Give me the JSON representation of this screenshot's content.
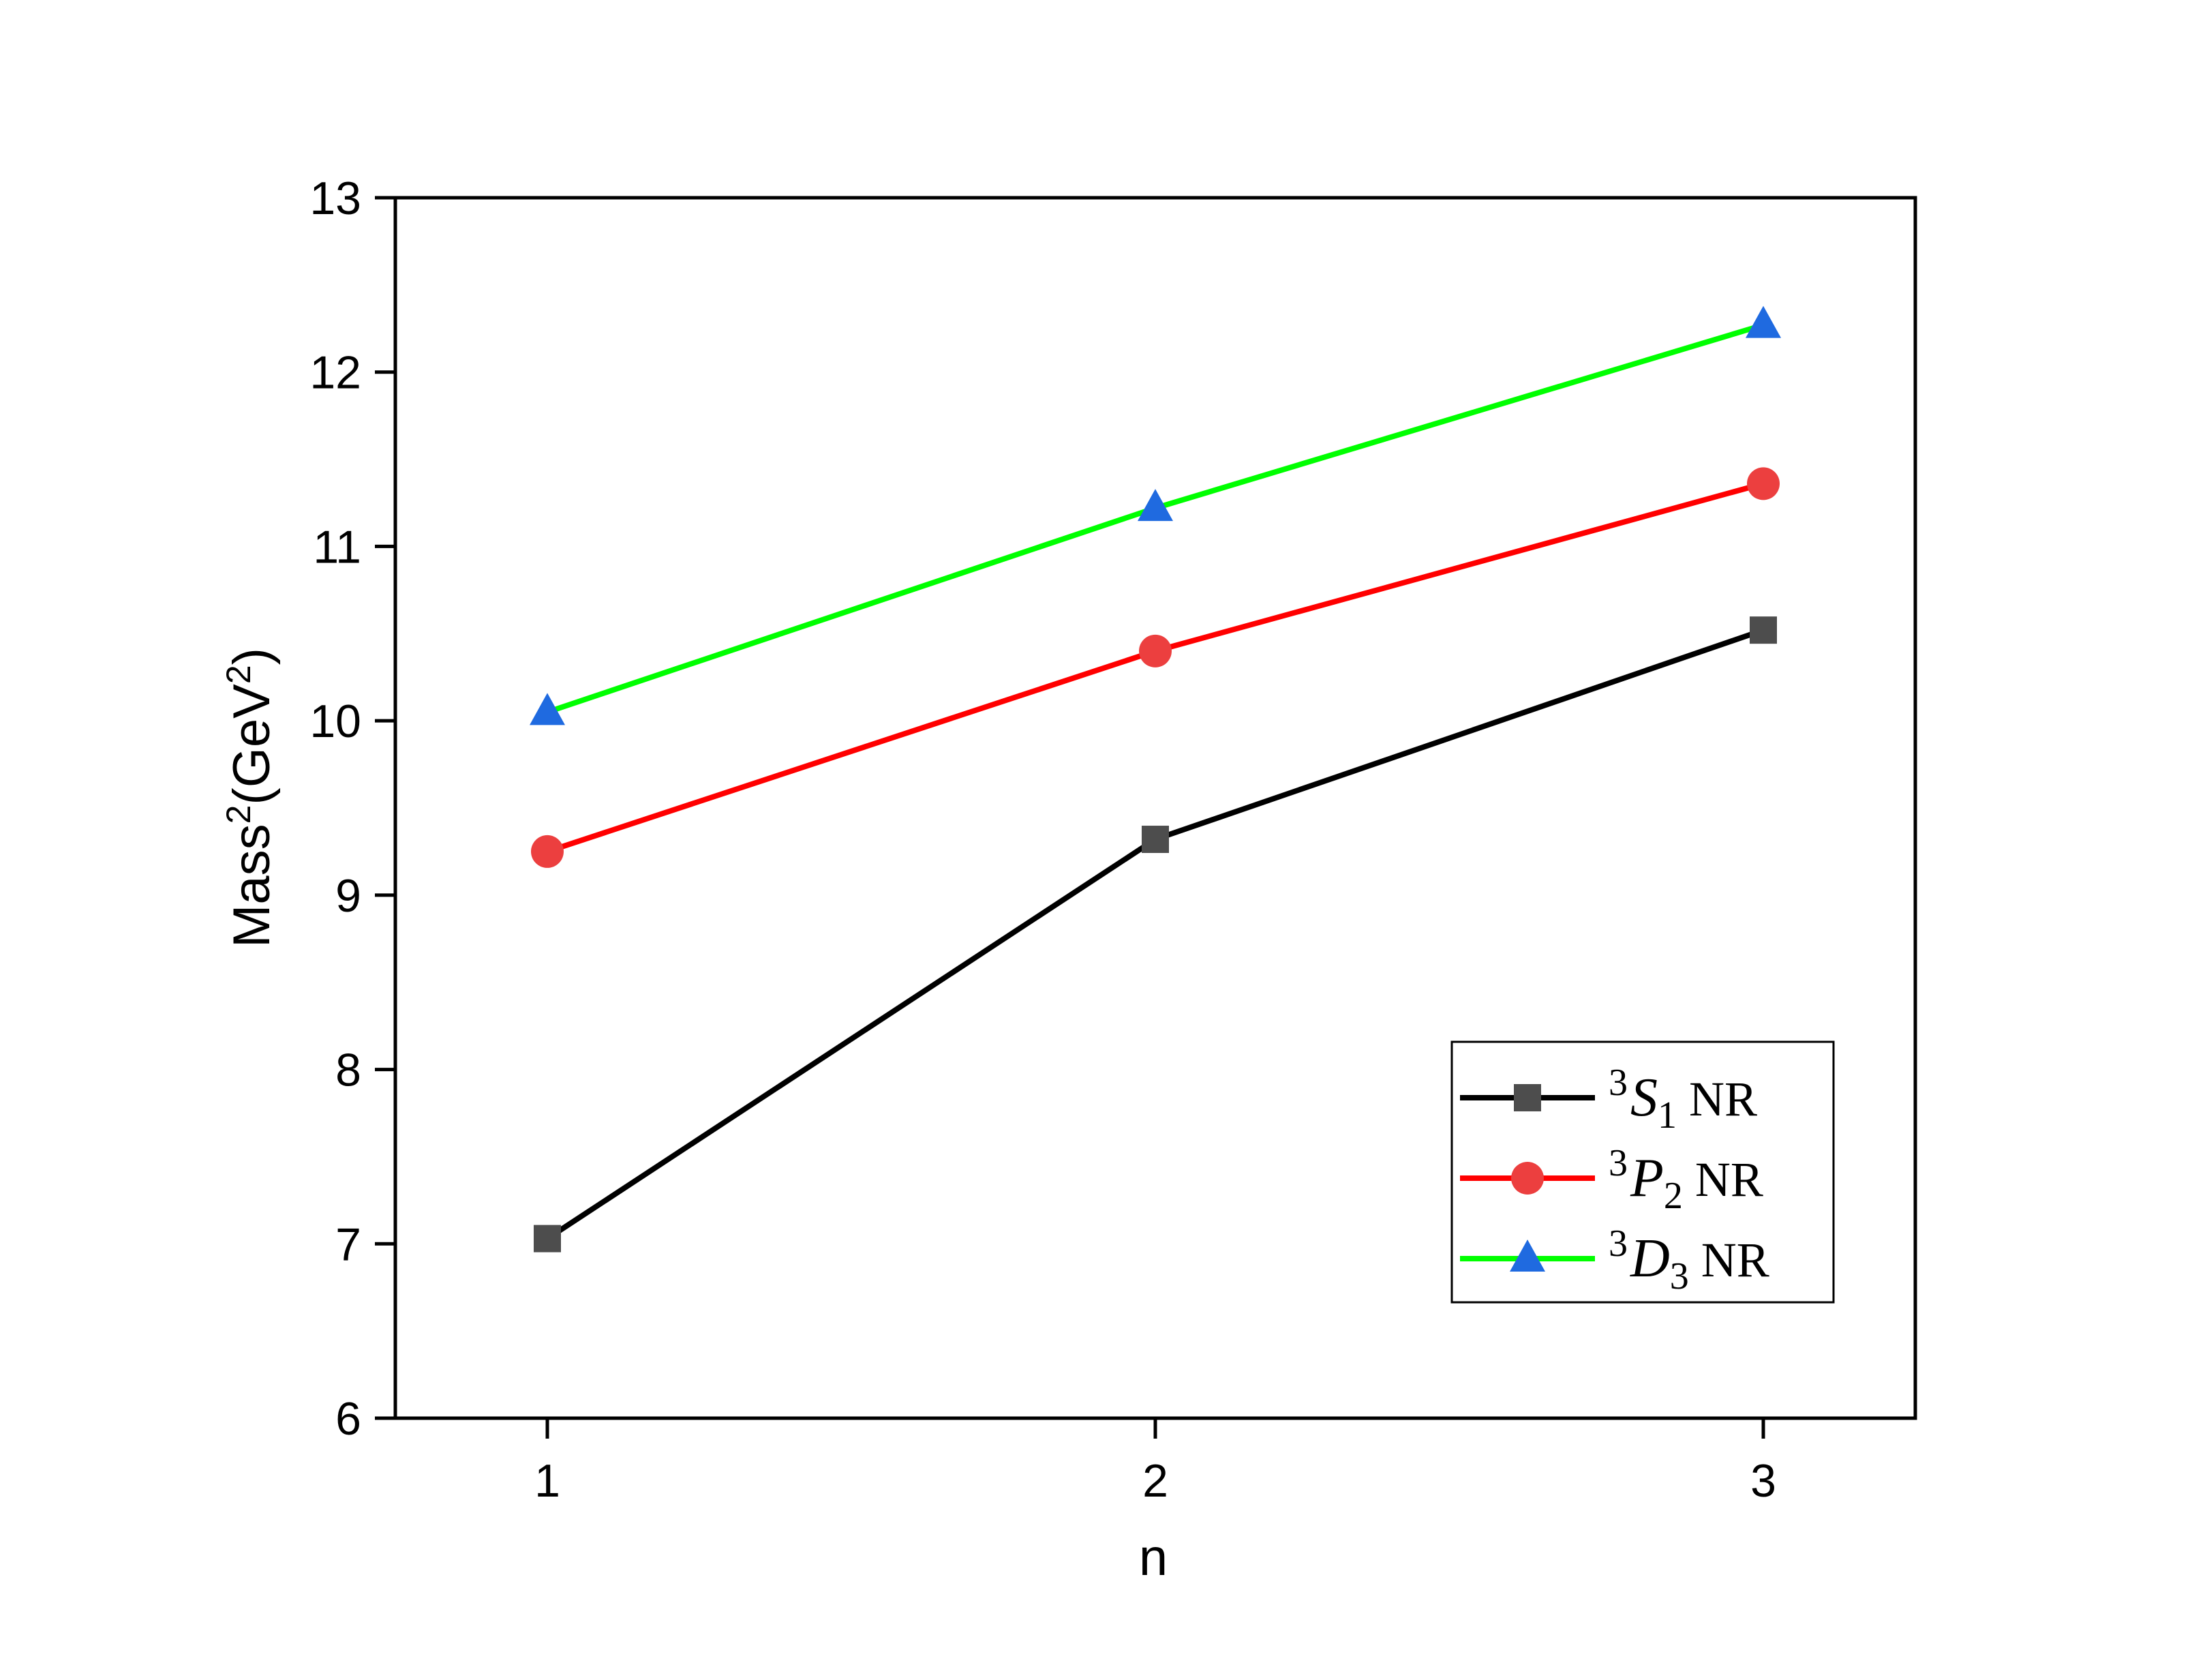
{
  "chart_data": {
    "type": "line",
    "title": "",
    "xlabel": "n",
    "ylabel": "Mass²(GeV²)",
    "x": [
      1,
      2,
      3
    ],
    "xlim": [
      0.75,
      3.25
    ],
    "ylim": [
      6,
      13
    ],
    "xticks": [
      "1",
      "2",
      "3"
    ],
    "yticks": [
      "6",
      "7",
      "8",
      "9",
      "10",
      "11",
      "12",
      "13"
    ],
    "grid": false,
    "legend_position": "bottom-right",
    "series": [
      {
        "name": "3S1 NR",
        "prefix": "3",
        "letter": "S",
        "subscript": "1",
        "suffix": "NR",
        "values": [
          7.03,
          9.32,
          10.52
        ],
        "line_color": "#000000",
        "marker_color": "#4d4d4d",
        "marker": "square"
      },
      {
        "name": "3P2 NR",
        "prefix": "3",
        "letter": "P",
        "subscript": "2",
        "suffix": "NR",
        "values": [
          9.25,
          10.4,
          11.36
        ],
        "line_color": "#ff0000",
        "marker_color": "#ec3f3f",
        "marker": "circle"
      },
      {
        "name": "3D3 NR",
        "prefix": "3",
        "letter": "D",
        "subscript": "3",
        "suffix": "NR",
        "values": [
          10.05,
          11.22,
          12.27
        ],
        "line_color": "#00ff00",
        "marker_color": "#1f6ae0",
        "marker": "triangle"
      }
    ]
  }
}
